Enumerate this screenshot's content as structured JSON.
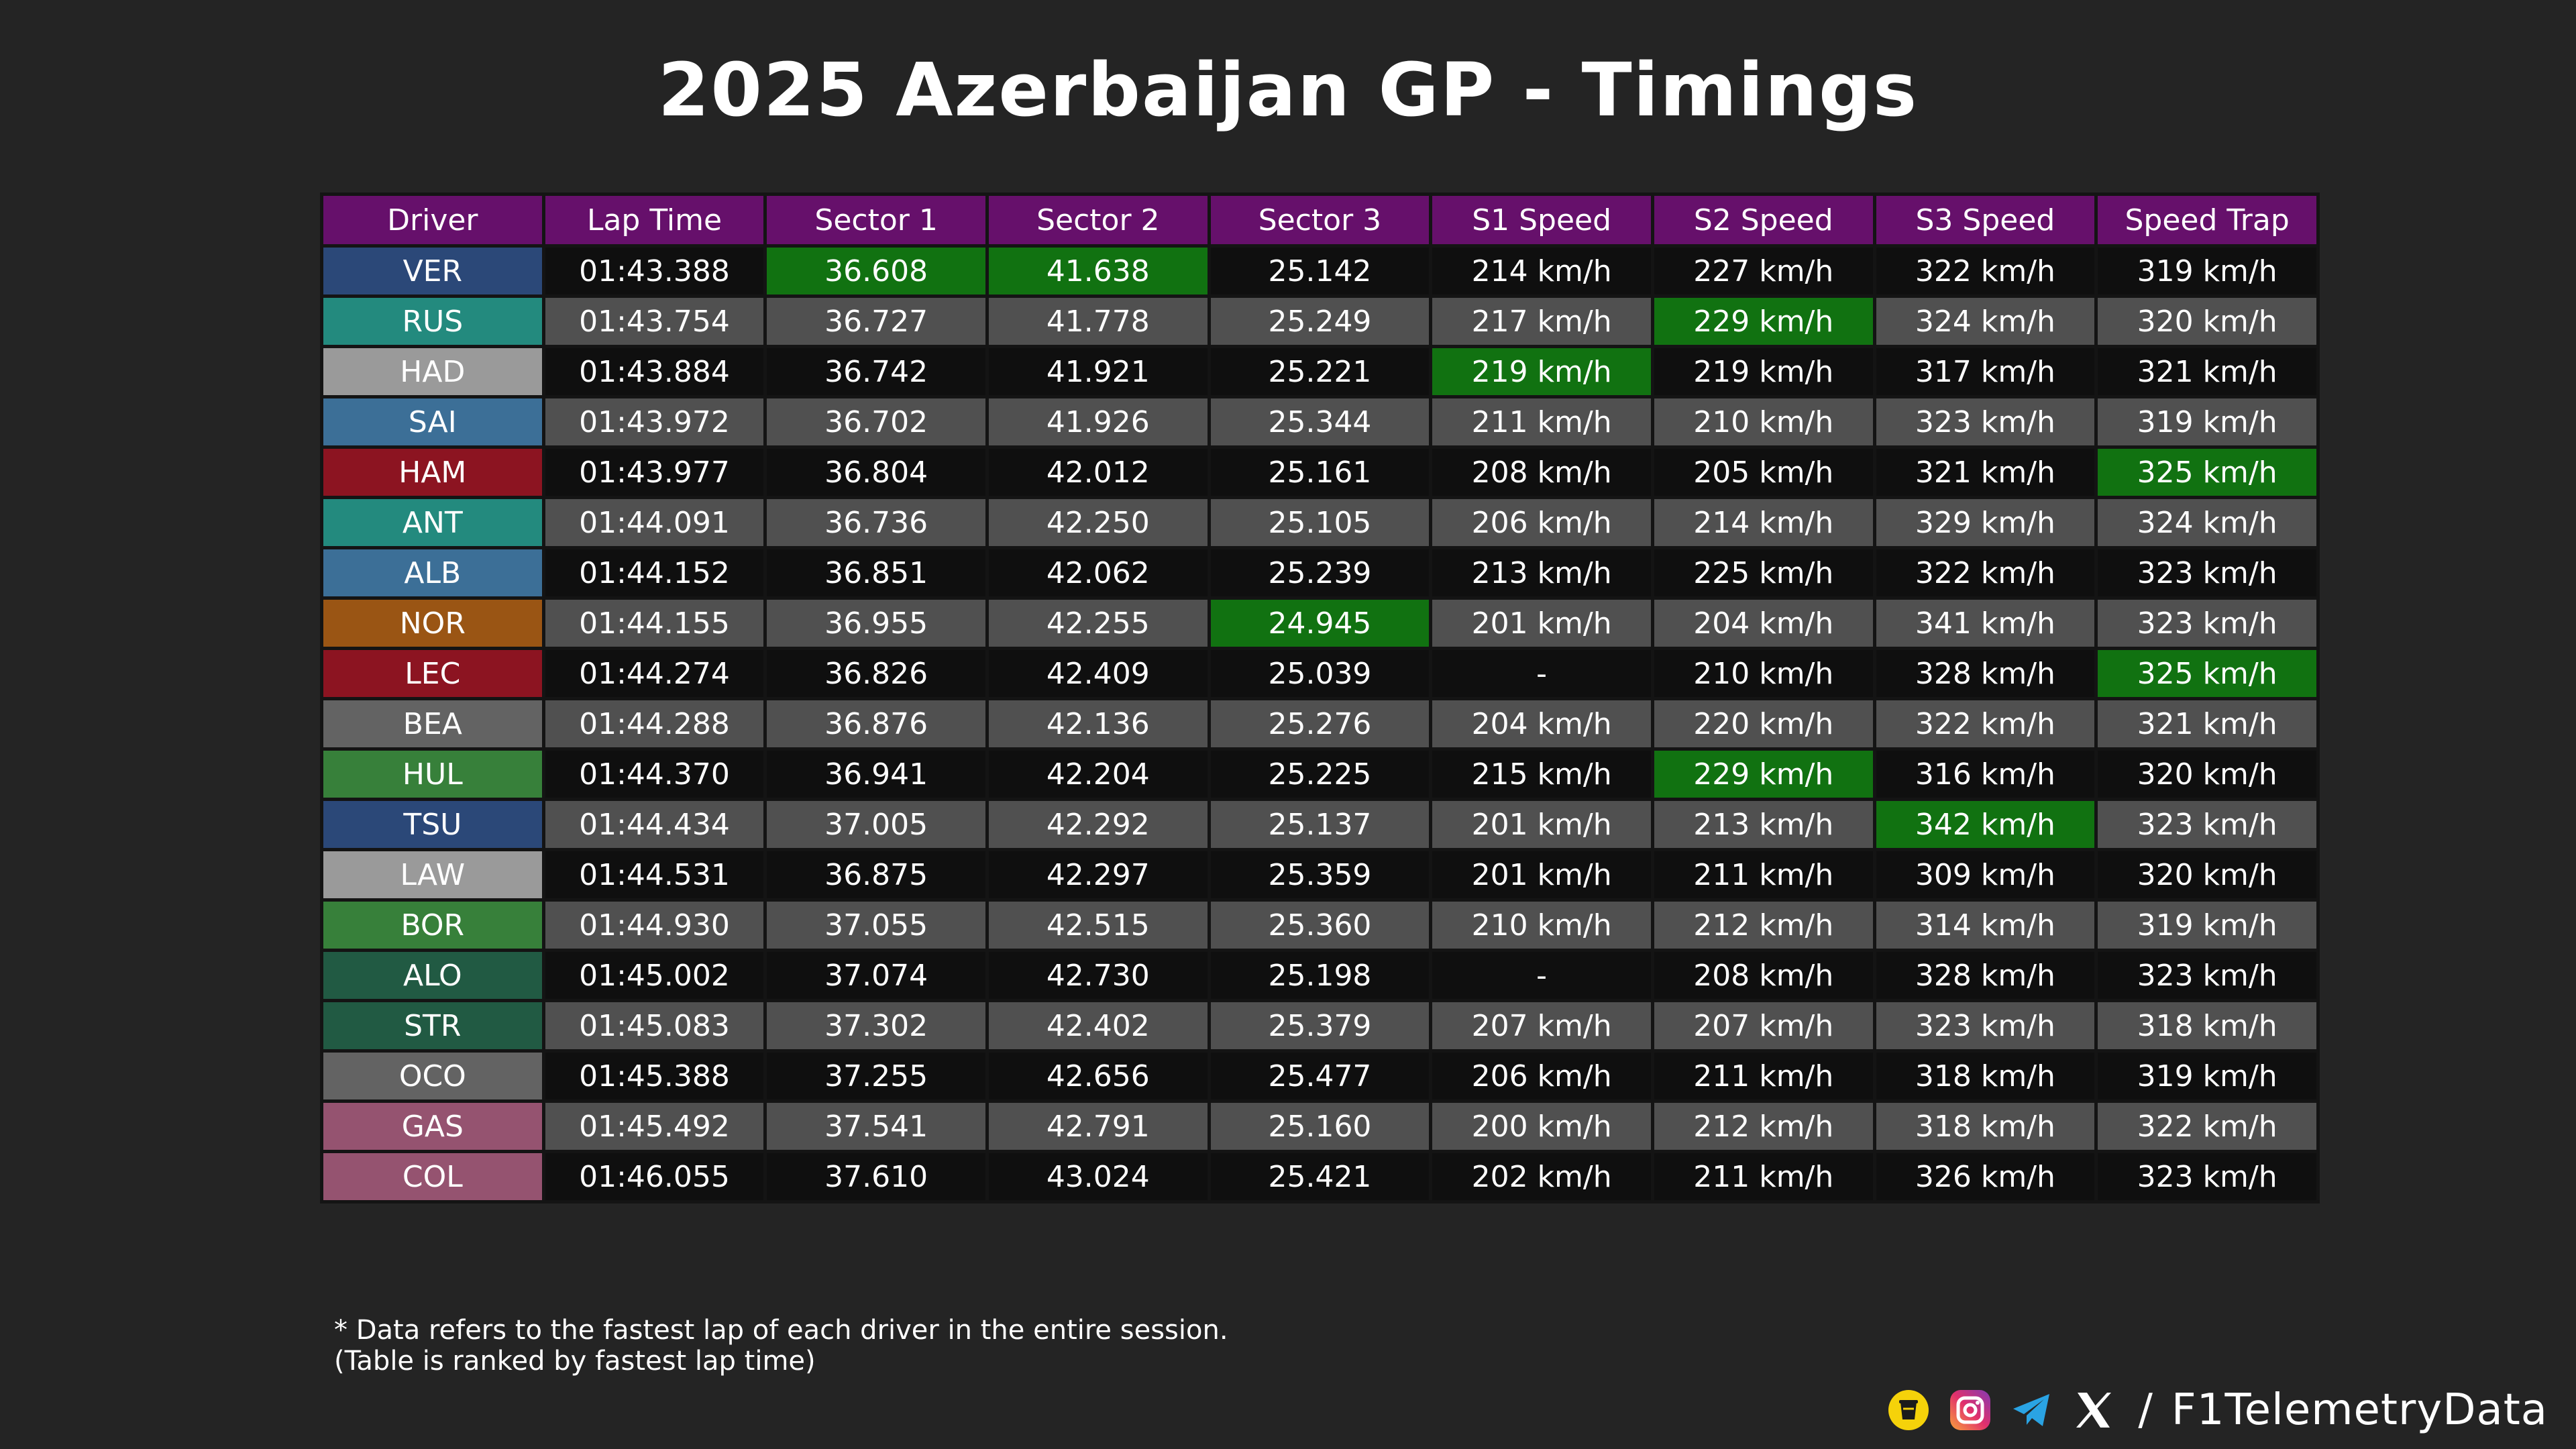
{
  "title": "2025 Azerbaijan GP - Timings",
  "watermark": "@F1TelemetryData",
  "columns": [
    "Driver",
    "Lap Time",
    "Sector 1",
    "Sector 2",
    "Sector 3",
    "S1 Speed",
    "S2 Speed",
    "S3 Speed",
    "Speed Trap"
  ],
  "rows": [
    {
      "driver": "VER",
      "team_color": "#2b4878",
      "values": [
        "01:43.388",
        "36.608",
        "41.638",
        "25.142",
        "214 km/h",
        "227 km/h",
        "322 km/h",
        "319 km/h"
      ],
      "best": [
        1,
        2
      ]
    },
    {
      "driver": "RUS",
      "team_color": "#238a7e",
      "values": [
        "01:43.754",
        "36.727",
        "41.778",
        "25.249",
        "217 km/h",
        "229 km/h",
        "324 km/h",
        "320 km/h"
      ],
      "best": [
        5
      ]
    },
    {
      "driver": "HAD",
      "team_color": "#9a9a9a",
      "values": [
        "01:43.884",
        "36.742",
        "41.921",
        "25.221",
        "219 km/h",
        "219 km/h",
        "317 km/h",
        "321 km/h"
      ],
      "best": [
        4
      ]
    },
    {
      "driver": "SAI",
      "team_color": "#3c6f97",
      "values": [
        "01:43.972",
        "36.702",
        "41.926",
        "25.344",
        "211 km/h",
        "210 km/h",
        "323 km/h",
        "319 km/h"
      ],
      "best": []
    },
    {
      "driver": "HAM",
      "team_color": "#8c1421",
      "values": [
        "01:43.977",
        "36.804",
        "42.012",
        "25.161",
        "208 km/h",
        "205 km/h",
        "321 km/h",
        "325 km/h"
      ],
      "best": [
        7
      ]
    },
    {
      "driver": "ANT",
      "team_color": "#238a7e",
      "values": [
        "01:44.091",
        "36.736",
        "42.250",
        "25.105",
        "206 km/h",
        "214 km/h",
        "329 km/h",
        "324 km/h"
      ],
      "best": []
    },
    {
      "driver": "ALB",
      "team_color": "#3c6f97",
      "values": [
        "01:44.152",
        "36.851",
        "42.062",
        "25.239",
        "213 km/h",
        "225 km/h",
        "322 km/h",
        "323 km/h"
      ],
      "best": []
    },
    {
      "driver": "NOR",
      "team_color": "#9a5514",
      "values": [
        "01:44.155",
        "36.955",
        "42.255",
        "24.945",
        "201 km/h",
        "204 km/h",
        "341 km/h",
        "323 km/h"
      ],
      "best": [
        3
      ]
    },
    {
      "driver": "LEC",
      "team_color": "#8c1421",
      "values": [
        "01:44.274",
        "36.826",
        "42.409",
        "25.039",
        "-",
        "210 km/h",
        "328 km/h",
        "325 km/h"
      ],
      "best": [
        7
      ]
    },
    {
      "driver": "BEA",
      "team_color": "#636363",
      "values": [
        "01:44.288",
        "36.876",
        "42.136",
        "25.276",
        "204 km/h",
        "220 km/h",
        "322 km/h",
        "321 km/h"
      ],
      "best": []
    },
    {
      "driver": "HUL",
      "team_color": "#37803a",
      "values": [
        "01:44.370",
        "36.941",
        "42.204",
        "25.225",
        "215 km/h",
        "229 km/h",
        "316 km/h",
        "320 km/h"
      ],
      "best": [
        5
      ]
    },
    {
      "driver": "TSU",
      "team_color": "#2b4878",
      "values": [
        "01:44.434",
        "37.005",
        "42.292",
        "25.137",
        "201 km/h",
        "213 km/h",
        "342 km/h",
        "323 km/h"
      ],
      "best": [
        6
      ]
    },
    {
      "driver": "LAW",
      "team_color": "#9a9a9a",
      "values": [
        "01:44.531",
        "36.875",
        "42.297",
        "25.359",
        "201 km/h",
        "211 km/h",
        "309 km/h",
        "320 km/h"
      ],
      "best": []
    },
    {
      "driver": "BOR",
      "team_color": "#37803a",
      "values": [
        "01:44.930",
        "37.055",
        "42.515",
        "25.360",
        "210 km/h",
        "212 km/h",
        "314 km/h",
        "319 km/h"
      ],
      "best": []
    },
    {
      "driver": "ALO",
      "team_color": "#215a43",
      "values": [
        "01:45.002",
        "37.074",
        "42.730",
        "25.198",
        "-",
        "208 km/h",
        "328 km/h",
        "323 km/h"
      ],
      "best": []
    },
    {
      "driver": "STR",
      "team_color": "#215a43",
      "values": [
        "01:45.083",
        "37.302",
        "42.402",
        "25.379",
        "207 km/h",
        "207 km/h",
        "323 km/h",
        "318 km/h"
      ],
      "best": []
    },
    {
      "driver": "OCO",
      "team_color": "#636363",
      "values": [
        "01:45.388",
        "37.255",
        "42.656",
        "25.477",
        "206 km/h",
        "211 km/h",
        "318 km/h",
        "319 km/h"
      ],
      "best": []
    },
    {
      "driver": "GAS",
      "team_color": "#955370",
      "values": [
        "01:45.492",
        "37.541",
        "42.791",
        "25.160",
        "200 km/h",
        "212 km/h",
        "318 km/h",
        "322 km/h"
      ],
      "best": []
    },
    {
      "driver": "COL",
      "team_color": "#955370",
      "values": [
        "01:46.055",
        "37.610",
        "43.024",
        "25.421",
        "202 km/h",
        "211 km/h",
        "326 km/h",
        "323 km/h"
      ],
      "best": []
    }
  ],
  "colors": {
    "header_bg": "#66106b",
    "best_bg": "#117211",
    "row_dark": "#0f0f0f",
    "row_light": "#505050",
    "page_bg": "#242424"
  },
  "notes": {
    "line1": "* Data refers to the fastest lap of each driver in the entire session.",
    "line2": "(Table is ranked by fastest lap time)"
  },
  "footer": {
    "slash": "/",
    "handle": "F1TelemetryData",
    "icons": [
      "kofi-cup-icon",
      "instagram-icon",
      "telegram-icon",
      "x-logo-icon"
    ]
  }
}
